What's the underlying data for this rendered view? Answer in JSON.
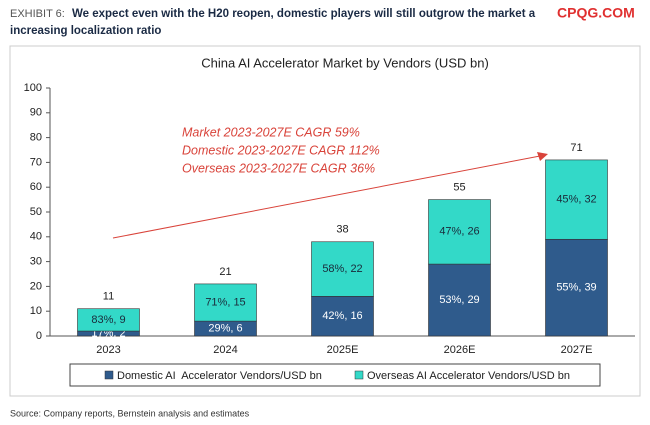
{
  "header": {
    "label": "EXHIBIT 6:",
    "title": "We expect even with the H20 reopen, domestic players will still outgrow the market a",
    "title_line2": "increasing localization ratio"
  },
  "watermark": "CPQG.COM",
  "source": "Source: Company reports, Bernstein analysis and estimates",
  "chart_data": {
    "type": "bar",
    "stacked": true,
    "title": "China AI Accelerator Market by Vendors (USD bn)",
    "categories": [
      "2023",
      "2024",
      "2025E",
      "2026E",
      "2027E"
    ],
    "series": [
      {
        "name": "Domestic AI  Accelerator Vendors/USD bn",
        "color": "#2f5b8c",
        "label_color": "#ffffff",
        "values": [
          2,
          6,
          16,
          29,
          39
        ],
        "value_labels": [
          "17%, 2",
          "29%, 6",
          "42%, 16",
          "53%, 29",
          "55%, 39"
        ]
      },
      {
        "name": "Overseas AI Accelerator Vendors/USD bn",
        "color": "#33d9c8",
        "label_color": "#1a2a3a",
        "values": [
          9,
          15,
          22,
          26,
          32
        ],
        "value_labels": [
          "83%, 9",
          "71%, 15",
          "58%, 22",
          "47%, 26",
          "45%, 32"
        ]
      }
    ],
    "totals": [
      11,
      21,
      38,
      55,
      71
    ],
    "annotations": [
      "Market 2023-2027E CAGR 59%",
      "Domestic 2023-2027E CAGR 112%",
      "Overseas 2023-2027E CAGR 36%"
    ],
    "ylim": [
      0,
      100
    ],
    "yticks": [
      0,
      10,
      20,
      30,
      40,
      50,
      60,
      70,
      80,
      90,
      100
    ],
    "grid": false
  }
}
